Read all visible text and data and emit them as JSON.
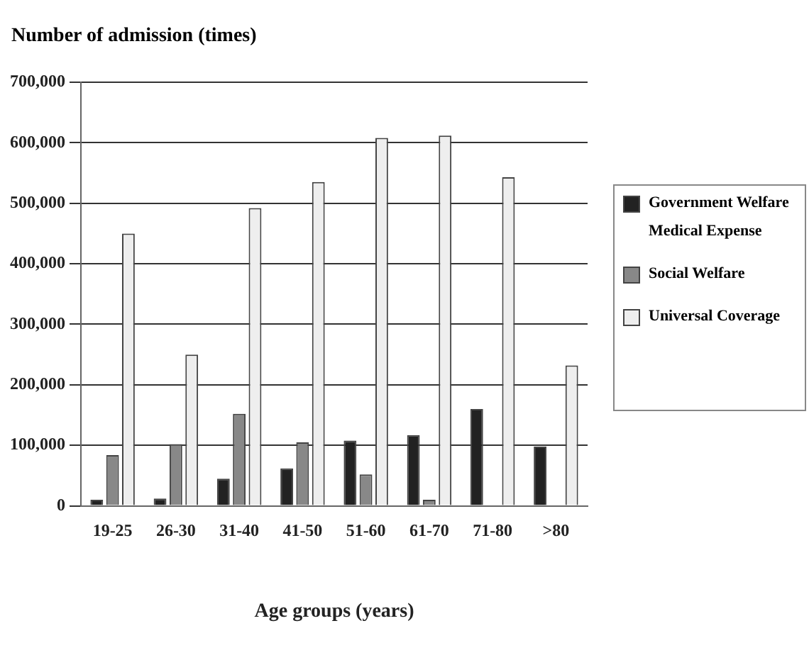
{
  "chart_data": {
    "type": "bar",
    "ylabel": "Number of admission (times)",
    "xlabel": "Age groups (years)",
    "categories": [
      "19-25",
      "26-30",
      "31-40",
      "41-50",
      "51-60",
      "61-70",
      "71-80",
      ">80"
    ],
    "series": [
      {
        "name": "Government Welfare Medical Expense",
        "color": "#222222",
        "values": [
          10000,
          12000,
          45000,
          62000,
          108000,
          117000,
          160000,
          98000
        ]
      },
      {
        "name": "Social Welfare",
        "color": "#888888",
        "values": [
          84000,
          102000,
          152000,
          105000,
          52000,
          10000,
          null,
          null
        ]
      },
      {
        "name": "Universal Coverage",
        "color": "#eeeeee",
        "values": [
          450000,
          250000,
          492000,
          535000,
          608000,
          612000,
          543000,
          232000
        ]
      }
    ],
    "ylim": [
      0,
      700000
    ],
    "yticks": [
      0,
      {
        "value": 100000,
        "label": "100,000"
      },
      {
        "value": 200000,
        "label": "200,000"
      },
      {
        "value": 300000,
        "label": "300,000"
      },
      {
        "value": 400000,
        "label": "400,000"
      },
      {
        "value": 500000,
        "label": "500,000"
      },
      {
        "value": 600000,
        "label": "600,000"
      },
      {
        "value": 700000,
        "label": "700,000"
      }
    ],
    "grid": "y",
    "legend": "right"
  }
}
